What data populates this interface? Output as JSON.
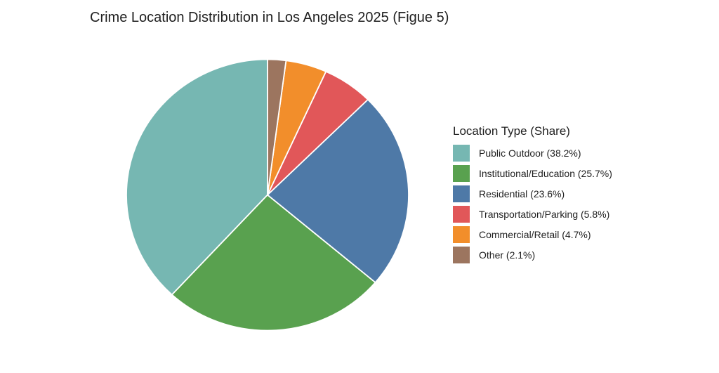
{
  "title": "Crime Location Distribution in Los Angeles 2025 (Figue 5)",
  "legend": {
    "title": "Location Type (Share)"
  },
  "chart_data": {
    "type": "pie",
    "title": "Crime Location Distribution in Los Angeles 2025 (Figue 5)",
    "legend_title": "Location Type (Share)",
    "legend_position": "right",
    "start_angle_deg": 90,
    "direction": "counterclockwise",
    "slice_border_color": "#ffffff",
    "slices": [
      {
        "label": "Public Outdoor",
        "value": 38.2,
        "display": "Public Outdoor (38.2%)",
        "color": "#76b7b2"
      },
      {
        "label": "Institutional/Education",
        "value": 25.7,
        "display": "Institutional/Education (25.7%)",
        "color": "#59a14f"
      },
      {
        "label": "Residential",
        "value": 23.6,
        "display": "Residential (23.6%)",
        "color": "#4e79a7"
      },
      {
        "label": "Transportation/Parking",
        "value": 5.8,
        "display": "Transportation/Parking (5.8%)",
        "color": "#e15759"
      },
      {
        "label": "Commercial/Retail",
        "value": 4.7,
        "display": "Commercial/Retail (4.7%)",
        "color": "#f28e2b"
      },
      {
        "label": "Other",
        "value": 2.1,
        "display": "Other (2.1%)",
        "color": "#9c755f"
      }
    ]
  }
}
